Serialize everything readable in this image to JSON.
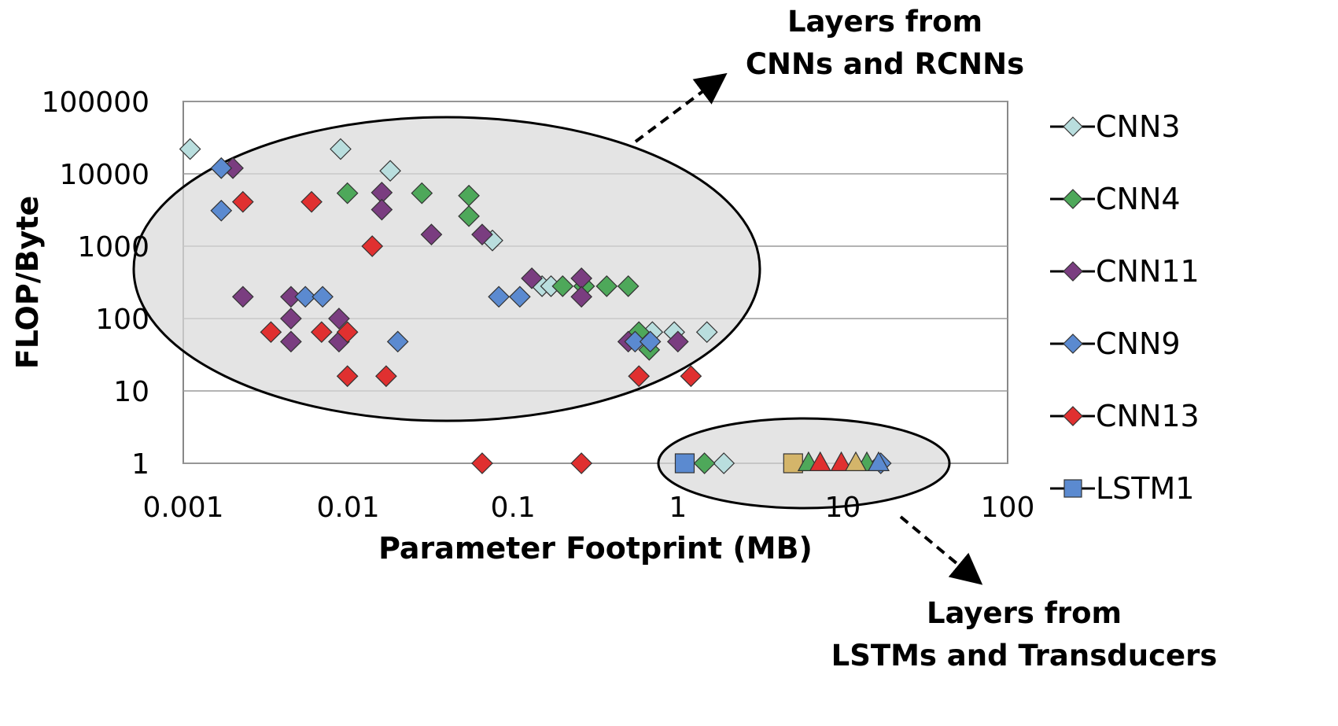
{
  "chart_data": {
    "type": "scatter",
    "xlabel": "Parameter Footprint (MB)",
    "ylabel": "FLOP/Byte",
    "x_scale": "log",
    "y_scale": "log",
    "xlim": [
      0.001,
      100
    ],
    "ylim": [
      1,
      100000
    ],
    "x_ticks": [
      "0.001",
      "0.01",
      "0.1",
      "1",
      "10",
      "100"
    ],
    "y_ticks": [
      "1",
      "10",
      "100",
      "1000",
      "10000",
      "100000"
    ],
    "grid": "horizontal",
    "legend_position": "right",
    "annotations": [
      {
        "lines": [
          "Layers from",
          "CNNs and RCNNs"
        ]
      },
      {
        "lines": [
          "Layers from",
          "LSTMs and Transducers"
        ]
      }
    ],
    "series": [
      {
        "name": "CNN3",
        "marker": "diamond",
        "color": "#b9dede",
        "points": [
          [
            0.0011,
            22000
          ],
          [
            0.009,
            22000
          ],
          [
            0.018,
            11000
          ],
          [
            0.075,
            1200
          ],
          [
            0.15,
            280
          ],
          [
            0.17,
            280
          ],
          [
            0.7,
            65
          ],
          [
            0.95,
            65
          ],
          [
            1.5,
            65
          ],
          [
            1.9,
            1
          ]
        ]
      },
      {
        "name": "CNN4",
        "marker": "diamond",
        "color": "#4ea85a",
        "points": [
          [
            0.0099,
            5400
          ],
          [
            0.028,
            5400
          ],
          [
            0.054,
            5000
          ],
          [
            0.054,
            2600
          ],
          [
            0.2,
            280
          ],
          [
            0.27,
            280
          ],
          [
            0.37,
            280
          ],
          [
            0.5,
            280
          ],
          [
            0.58,
            65
          ],
          [
            0.67,
            37
          ],
          [
            1.45,
            1
          ]
        ]
      },
      {
        "name": "CNN11",
        "marker": "diamond",
        "color": "#7a3d80",
        "points": [
          [
            0.002,
            12000
          ],
          [
            0.0023,
            200
          ],
          [
            0.0045,
            200
          ],
          [
            0.0045,
            100
          ],
          [
            0.0045,
            48
          ],
          [
            0.0088,
            100
          ],
          [
            0.0088,
            48
          ],
          [
            0.016,
            5500
          ],
          [
            0.016,
            3200
          ],
          [
            0.032,
            1450
          ],
          [
            0.065,
            1450
          ],
          [
            0.13,
            360
          ],
          [
            0.26,
            360
          ],
          [
            0.26,
            200
          ],
          [
            0.5,
            48
          ],
          [
            1.0,
            48
          ]
        ]
      },
      {
        "name": "CNN9",
        "marker": "diamond",
        "color": "#5b8ad0",
        "points": [
          [
            0.0017,
            12000
          ],
          [
            0.0017,
            3100
          ],
          [
            0.0055,
            200
          ],
          [
            0.007,
            200
          ],
          [
            0.02,
            48
          ],
          [
            0.082,
            200
          ],
          [
            0.11,
            200
          ],
          [
            0.55,
            48
          ],
          [
            0.68,
            48
          ],
          [
            17,
            1
          ]
        ]
      },
      {
        "name": "CNN13",
        "marker": "diamond",
        "color": "#e03030",
        "points": [
          [
            0.0023,
            4100
          ],
          [
            0.006,
            4100
          ],
          [
            0.014,
            1000
          ],
          [
            0.0034,
            65
          ],
          [
            0.0069,
            65
          ],
          [
            0.0099,
            65
          ],
          [
            0.0099,
            16
          ],
          [
            0.017,
            16
          ],
          [
            0.065,
            1
          ],
          [
            0.26,
            1
          ],
          [
            0.58,
            16
          ],
          [
            1.2,
            16
          ]
        ]
      },
      {
        "name": "LSTM1",
        "marker": "square",
        "color": "#5b8ad0",
        "points": [
          [
            1.1,
            1
          ]
        ]
      }
    ],
    "extra_markers": [
      {
        "marker": "square",
        "color": "#d4b56a",
        "points": [
          [
            5.0,
            1
          ]
        ]
      },
      {
        "marker": "triangle",
        "color": "#4ea85a",
        "points": [
          [
            6.2,
            1
          ],
          [
            14.0,
            1
          ]
        ]
      },
      {
        "marker": "triangle",
        "color": "#e03030",
        "points": [
          [
            7.3,
            1
          ],
          [
            9.8,
            1
          ]
        ]
      },
      {
        "marker": "triangle",
        "color": "#d4b56a",
        "points": [
          [
            12.0,
            1
          ]
        ]
      },
      {
        "marker": "triangle",
        "color": "#5b8ad0",
        "points": [
          [
            16.5,
            1
          ]
        ]
      }
    ]
  }
}
